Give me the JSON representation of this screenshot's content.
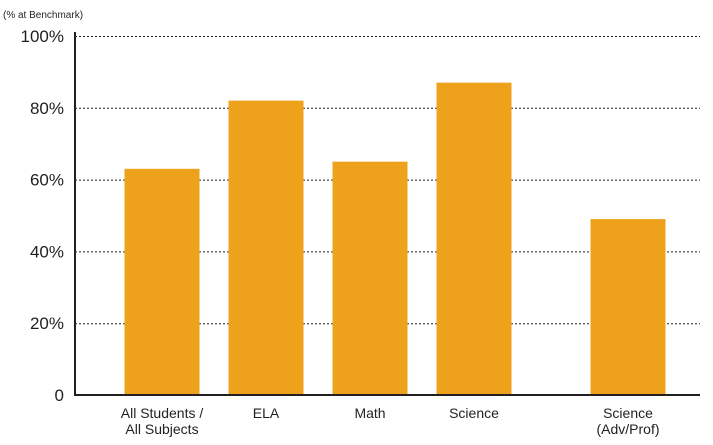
{
  "chart_data": {
    "type": "bar",
    "unit_label": "(% at Benchmark)",
    "categories": [
      [
        "All Students /",
        "All Subjects"
      ],
      [
        "ELA"
      ],
      [
        "Math"
      ],
      [
        "Science"
      ],
      [
        "Science",
        "(Adv/Prof)"
      ]
    ],
    "values": [
      63,
      82,
      65,
      87,
      49
    ],
    "ylim": [
      0,
      100
    ],
    "yticks": [
      0,
      20,
      40,
      60,
      80,
      100
    ],
    "ytick_labels": [
      "0",
      "20%",
      "40%",
      "60%",
      "80%",
      "100%"
    ],
    "grid": true,
    "bar_color": "#eea21b",
    "axis_color": "#231f20"
  }
}
